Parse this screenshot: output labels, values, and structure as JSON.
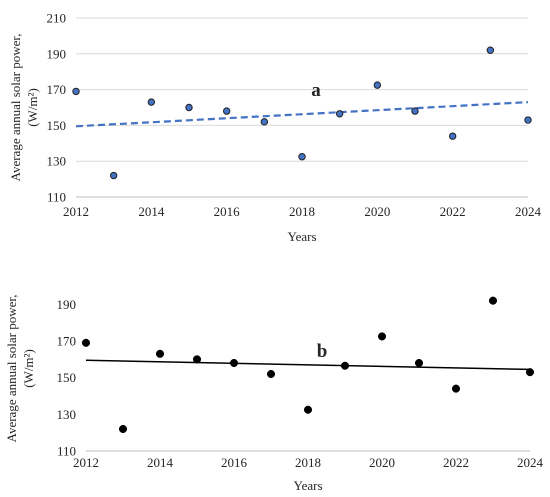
{
  "chart_data": [
    {
      "type": "scatter",
      "panel_label": "a",
      "xlabel": "Years",
      "ylabel_line1": "Average annual solar power,",
      "ylabel_line2": "(W/m²)",
      "xlim": [
        2012,
        2024
      ],
      "ylim": [
        110,
        210
      ],
      "x_ticks": [
        2012,
        2014,
        2016,
        2018,
        2020,
        2022,
        2024
      ],
      "y_ticks": [
        110,
        130,
        150,
        170,
        190,
        210
      ],
      "grid": "horizontal",
      "legend": "none",
      "marker_color": "#4472c4",
      "marker_edge": "#1f1f1f",
      "series": [
        {
          "x": [
            2012,
            2013,
            2014,
            2015,
            2016,
            2017,
            2018,
            2019,
            2020,
            2021,
            2022,
            2023,
            2024
          ],
          "y": [
            169,
            122,
            163,
            160,
            158,
            152,
            132.5,
            156.5,
            172.5,
            158,
            144,
            192,
            153
          ]
        }
      ],
      "trendline": {
        "style": "dashed",
        "color": "#4472c4",
        "start": [
          2012,
          149.5
        ],
        "end": [
          2024,
          163
        ]
      }
    },
    {
      "type": "scatter",
      "panel_label": "b",
      "xlabel": "Years",
      "ylabel_line1": "Average annual solar power,",
      "ylabel_line2": "(W/m²)",
      "xlim": [
        2012,
        2024
      ],
      "ylim": [
        110,
        200
      ],
      "x_ticks": [
        2012,
        2014,
        2016,
        2018,
        2020,
        2022,
        2024
      ],
      "y_ticks": [
        110,
        130,
        150,
        170,
        190
      ],
      "grid": "none",
      "legend": "none",
      "marker_color": "#000000",
      "marker_edge": "#000000",
      "series": [
        {
          "x": [
            2012,
            2013,
            2014,
            2015,
            2016,
            2017,
            2018,
            2019,
            2020,
            2021,
            2022,
            2023,
            2024
          ],
          "y": [
            169,
            122,
            163,
            160,
            158,
            152,
            132.5,
            156.5,
            172.5,
            158,
            144,
            192,
            153
          ]
        }
      ],
      "trendline": {
        "style": "solid",
        "color": "#000000",
        "start": [
          2012,
          159.5
        ],
        "end": [
          2024,
          154.5
        ]
      }
    }
  ]
}
